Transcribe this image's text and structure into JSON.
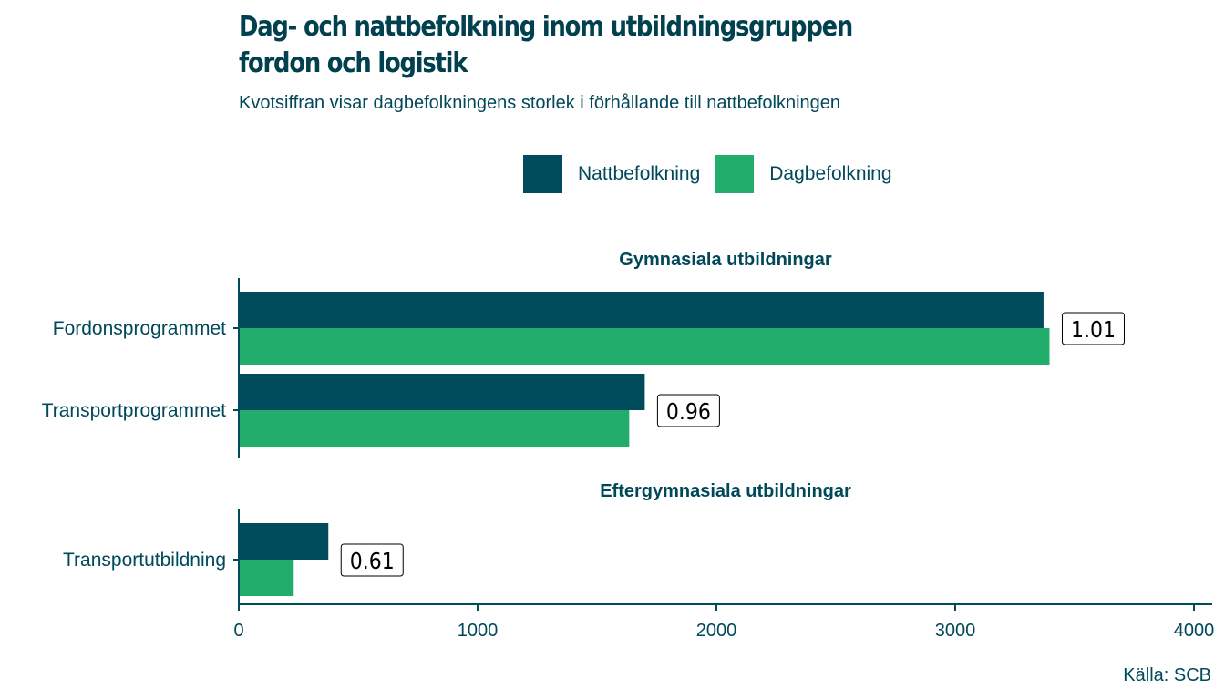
{
  "header": {
    "title_line1": "Dag- och nattbefolkning inom utbildningsgruppen",
    "title_line2": "fordon och logistik",
    "subtitle": "Kvotsiffran visar dagbefolkningens storlek i förhållande till nattbefolkningen"
  },
  "caption": "Källa: SCB",
  "colors": {
    "natt": "#004b5c",
    "dag": "#22ad6d",
    "text": "#004b5c"
  },
  "chart_data": {
    "type": "bar",
    "orientation": "horizontal",
    "title": "Dag- och nattbefolkning inom utbildningsgruppen fordon och logistik",
    "subtitle": "Kvotsiffran visar dagbefolkningens storlek i förhållande till nattbefolkningen",
    "xlabel": "",
    "ylabel": "",
    "xlim": [
      0,
      4000
    ],
    "x_ticks": [
      "0",
      "1000",
      "2000",
      "3000",
      "4000"
    ],
    "x_tick_values": [
      0,
      1000,
      2000,
      3000,
      4000
    ],
    "grid": false,
    "legend_position": "top",
    "legend": [
      "Nattbefolkning",
      "Dagbefolkning"
    ],
    "facets": [
      {
        "title": "Gymnasiala utbildningar",
        "categories": [
          "Fordonsprogrammet",
          "Transportprogrammet"
        ],
        "series": [
          {
            "name": "Nattbefolkning",
            "values": [
              3370,
              1700
            ]
          },
          {
            "name": "Dagbefolkning",
            "values": [
              3395,
              1635
            ]
          }
        ],
        "ratio_labels": [
          "1.01",
          "0.96"
        ]
      },
      {
        "title": "Eftergymnasiala utbildningar",
        "categories": [
          "Transportutbildning"
        ],
        "series": [
          {
            "name": "Nattbefolkning",
            "values": [
              375
            ]
          },
          {
            "name": "Dagbefolkning",
            "values": [
              230
            ]
          }
        ],
        "ratio_labels": [
          "0.61"
        ]
      }
    ],
    "source": "Källa: SCB"
  }
}
